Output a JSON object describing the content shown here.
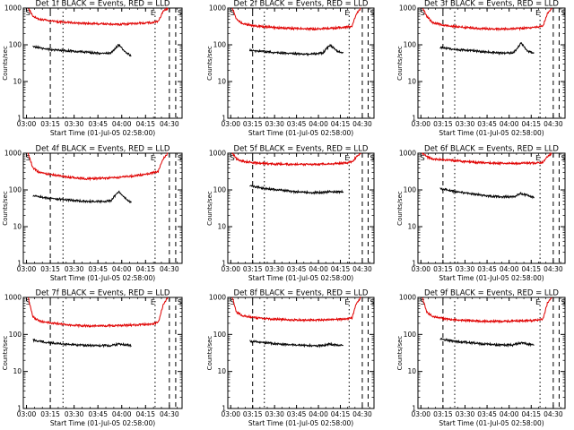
{
  "colors": {
    "events": "#000000",
    "lld": "#e00000",
    "axes": "#000000",
    "background": "#ffffff"
  },
  "chart_data": [
    {
      "type": "line",
      "title": "Det 1f BLACK = Events, RED = LLD",
      "xlabel": "Start Time (01-Jul-05 02:58:00)",
      "ylabel": "Counts/sec",
      "yscale": "log",
      "ylim": [
        1,
        1000
      ],
      "xlim_minutes": [
        0,
        100
      ],
      "x_tick_labels": [
        "03:00",
        "03:15",
        "03:30",
        "03:45",
        "04:00",
        "04:15",
        "04:30"
      ],
      "y_tick_labels": [
        "1",
        "10",
        "100",
        "1000"
      ],
      "markers": [
        "S",
        "E",
        "S"
      ],
      "series": [
        {
          "color": "#000000",
          "x": [
            6,
            15,
            25,
            35,
            45,
            55,
            60,
            65,
            68
          ],
          "y": [
            90,
            75,
            70,
            65,
            60,
            58,
            100,
            60,
            50
          ]
        },
        {
          "color": "#e00000",
          "x": [
            3,
            6,
            10,
            20,
            30,
            40,
            50,
            60,
            70,
            80,
            85,
            88,
            91
          ],
          "y": [
            1000,
            600,
            500,
            430,
            400,
            380,
            370,
            360,
            380,
            400,
            430,
            800,
            1000
          ]
        }
      ]
    },
    {
      "type": "line",
      "title": "Det 2f BLACK = Events, RED = LLD",
      "xlabel": "Start Time (01-Jul-05 02:58:00)",
      "ylabel": "Counts/sec",
      "yscale": "log",
      "ylim": [
        1,
        1000
      ],
      "xlim_minutes": [
        0,
        100
      ],
      "x_tick_labels": [
        "03:00",
        "03:15",
        "03:30",
        "03:45",
        "04:00",
        "04:15",
        "04:30"
      ],
      "y_tick_labels": [
        "1",
        "10",
        "100",
        "1000"
      ],
      "markers": [
        "S",
        "E",
        "S"
      ],
      "series": [
        {
          "color": "#000000",
          "x": [
            15,
            25,
            35,
            45,
            55,
            65,
            70,
            75,
            79
          ],
          "y": [
            70,
            65,
            60,
            58,
            55,
            60,
            100,
            65,
            60
          ]
        },
        {
          "color": "#e00000",
          "x": [
            3,
            6,
            10,
            20,
            30,
            40,
            50,
            60,
            70,
            80,
            85,
            88,
            91
          ],
          "y": [
            1000,
            500,
            380,
            320,
            300,
            280,
            275,
            270,
            280,
            300,
            320,
            700,
            1000
          ]
        }
      ]
    },
    {
      "type": "line",
      "title": "Det 3f BLACK = Events, RED = LLD",
      "xlabel": "Start Time (01-Jul-05 02:58:00)",
      "ylabel": "Counts/sec",
      "yscale": "log",
      "ylim": [
        1,
        1000
      ],
      "xlim_minutes": [
        0,
        100
      ],
      "x_tick_labels": [
        "03:00",
        "03:15",
        "03:30",
        "03:45",
        "04:00",
        "04:15",
        "04:30"
      ],
      "y_tick_labels": [
        "1",
        "10",
        "100",
        "1000"
      ],
      "markers": [
        "S",
        "E",
        "S"
      ],
      "series": [
        {
          "color": "#000000",
          "x": [
            15,
            25,
            35,
            45,
            55,
            65,
            70,
            75,
            79
          ],
          "y": [
            85,
            75,
            70,
            65,
            60,
            60,
            110,
            65,
            60
          ]
        },
        {
          "color": "#e00000",
          "x": [
            3,
            6,
            10,
            20,
            30,
            40,
            50,
            60,
            70,
            80,
            85,
            88,
            91
          ],
          "y": [
            1000,
            600,
            400,
            330,
            300,
            280,
            270,
            270,
            280,
            300,
            320,
            700,
            1000
          ]
        }
      ]
    },
    {
      "type": "line",
      "title": "Det 4f BLACK = Events, RED = LLD",
      "xlabel": "Start Time (01-Jul-05 02:58:00)",
      "ylabel": "Counts/sec",
      "yscale": "log",
      "ylim": [
        1,
        1000
      ],
      "xlim_minutes": [
        0,
        100
      ],
      "x_tick_labels": [
        "03:00",
        "03:15",
        "03:30",
        "03:45",
        "04:00",
        "04:15",
        "04:30"
      ],
      "y_tick_labels": [
        "1",
        "10",
        "100",
        "1000"
      ],
      "markers": [
        "S",
        "E",
        "S"
      ],
      "series": [
        {
          "color": "#000000",
          "x": [
            6,
            15,
            25,
            35,
            45,
            55,
            60,
            65,
            68
          ],
          "y": [
            70,
            60,
            55,
            50,
            48,
            50,
            90,
            55,
            45
          ]
        },
        {
          "color": "#e00000",
          "x": [
            3,
            6,
            10,
            20,
            30,
            40,
            50,
            60,
            70,
            80,
            85,
            88,
            91
          ],
          "y": [
            1000,
            400,
            300,
            250,
            220,
            200,
            210,
            220,
            240,
            280,
            320,
            700,
            1000
          ]
        }
      ]
    },
    {
      "type": "line",
      "title": "Det 5f BLACK = Events, RED = LLD",
      "xlabel": "Start Time (01-Jul-05 02:58:00)",
      "ylabel": "Counts/sec",
      "yscale": "log",
      "ylim": [
        1,
        1000
      ],
      "xlim_minutes": [
        0,
        100
      ],
      "x_tick_labels": [
        "03:00",
        "03:15",
        "03:30",
        "03:45",
        "04:00",
        "04:15",
        "04:30"
      ],
      "y_tick_labels": [
        "1",
        "10",
        "100",
        "1000"
      ],
      "markers": [
        "S",
        "E",
        "S"
      ],
      "series": [
        {
          "color": "#000000",
          "x": [
            15,
            25,
            35,
            45,
            55,
            65,
            70,
            75,
            79
          ],
          "y": [
            130,
            110,
            100,
            90,
            85,
            85,
            90,
            88,
            90
          ]
        },
        {
          "color": "#e00000",
          "x": [
            3,
            6,
            10,
            20,
            30,
            40,
            50,
            60,
            70,
            80,
            85,
            88,
            91
          ],
          "y": [
            1000,
            700,
            600,
            540,
            510,
            500,
            500,
            500,
            510,
            540,
            580,
            800,
            1000
          ]
        }
      ]
    },
    {
      "type": "line",
      "title": "Det 6f BLACK = Events, RED = LLD",
      "xlabel": "Start Time (01-Jul-05 02:58:00)",
      "ylabel": "Counts/sec",
      "yscale": "log",
      "ylim": [
        1,
        1000
      ],
      "xlim_minutes": [
        0,
        100
      ],
      "x_tick_labels": [
        "03:00",
        "03:15",
        "03:30",
        "03:45",
        "04:00",
        "04:15",
        "04:30"
      ],
      "y_tick_labels": [
        "1",
        "10",
        "100",
        "1000"
      ],
      "markers": [
        "S",
        "E",
        "S"
      ],
      "series": [
        {
          "color": "#000000",
          "x": [
            15,
            25,
            35,
            45,
            55,
            65,
            70,
            75,
            79
          ],
          "y": [
            110,
            90,
            80,
            70,
            65,
            65,
            80,
            70,
            60
          ]
        },
        {
          "color": "#e00000",
          "x": [
            3,
            6,
            10,
            20,
            30,
            40,
            50,
            60,
            70,
            80,
            85,
            88,
            91
          ],
          "y": [
            1000,
            800,
            700,
            650,
            600,
            560,
            540,
            530,
            530,
            540,
            560,
            800,
            1000
          ]
        }
      ]
    },
    {
      "type": "line",
      "title": "Det 7f BLACK = Events, RED = LLD",
      "xlabel": "Start Time (01-Jul-05 02:58:00)",
      "ylabel": "Counts/sec",
      "yscale": "log",
      "ylim": [
        1,
        1000
      ],
      "xlim_minutes": [
        0,
        100
      ],
      "x_tick_labels": [
        "03:00",
        "03:15",
        "03:30",
        "03:45",
        "04:00",
        "04:15",
        "04:30"
      ],
      "y_tick_labels": [
        "1",
        "10",
        "100",
        "1000"
      ],
      "markers": [
        "S",
        "E",
        "S"
      ],
      "series": [
        {
          "color": "#000000",
          "x": [
            6,
            15,
            25,
            35,
            45,
            55,
            60,
            65,
            68
          ],
          "y": [
            70,
            60,
            55,
            52,
            50,
            50,
            55,
            52,
            50
          ]
        },
        {
          "color": "#e00000",
          "x": [
            3,
            6,
            10,
            20,
            30,
            40,
            50,
            60,
            70,
            80,
            85,
            88,
            91
          ],
          "y": [
            1000,
            300,
            230,
            200,
            180,
            170,
            170,
            175,
            180,
            190,
            210,
            600,
            1000
          ]
        }
      ]
    },
    {
      "type": "line",
      "title": "Det 8f BLACK = Events, RED = LLD",
      "xlabel": "Start Time (01-Jul-05 02:58:00)",
      "ylabel": "Counts/sec",
      "yscale": "log",
      "ylim": [
        1,
        1000
      ],
      "xlim_minutes": [
        0,
        100
      ],
      "x_tick_labels": [
        "03:00",
        "03:15",
        "03:30",
        "03:45",
        "04:00",
        "04:15",
        "04:30"
      ],
      "y_tick_labels": [
        "1",
        "10",
        "100",
        "1000"
      ],
      "markers": [
        "S",
        "E",
        "S"
      ],
      "series": [
        {
          "color": "#000000",
          "x": [
            15,
            25,
            35,
            45,
            55,
            65,
            70,
            75,
            79
          ],
          "y": [
            65,
            60,
            55,
            52,
            50,
            50,
            55,
            52,
            50
          ]
        },
        {
          "color": "#e00000",
          "x": [
            3,
            6,
            10,
            20,
            30,
            40,
            50,
            60,
            70,
            80,
            85,
            88,
            91
          ],
          "y": [
            1000,
            400,
            320,
            280,
            260,
            250,
            245,
            245,
            250,
            260,
            280,
            700,
            1000
          ]
        }
      ]
    },
    {
      "type": "line",
      "title": "Det 9f BLACK = Events, RED = LLD",
      "xlabel": "Start Time (01-Jul-05 02:58:00)",
      "ylabel": "Counts/sec",
      "yscale": "log",
      "ylim": [
        1,
        1000
      ],
      "xlim_minutes": [
        0,
        100
      ],
      "x_tick_labels": [
        "03:00",
        "03:15",
        "03:30",
        "03:45",
        "04:00",
        "04:15",
        "04:30"
      ],
      "y_tick_labels": [
        "1",
        "10",
        "100",
        "1000"
      ],
      "markers": [
        "S",
        "E",
        "S"
      ],
      "series": [
        {
          "color": "#000000",
          "x": [
            15,
            25,
            35,
            45,
            55,
            65,
            70,
            75,
            79
          ],
          "y": [
            75,
            65,
            60,
            55,
            52,
            52,
            60,
            55,
            52
          ]
        },
        {
          "color": "#e00000",
          "x": [
            3,
            6,
            10,
            20,
            30,
            40,
            50,
            60,
            70,
            80,
            85,
            88,
            91
          ],
          "y": [
            1000,
            400,
            300,
            260,
            240,
            230,
            225,
            225,
            230,
            240,
            260,
            700,
            1000
          ]
        }
      ]
    }
  ]
}
